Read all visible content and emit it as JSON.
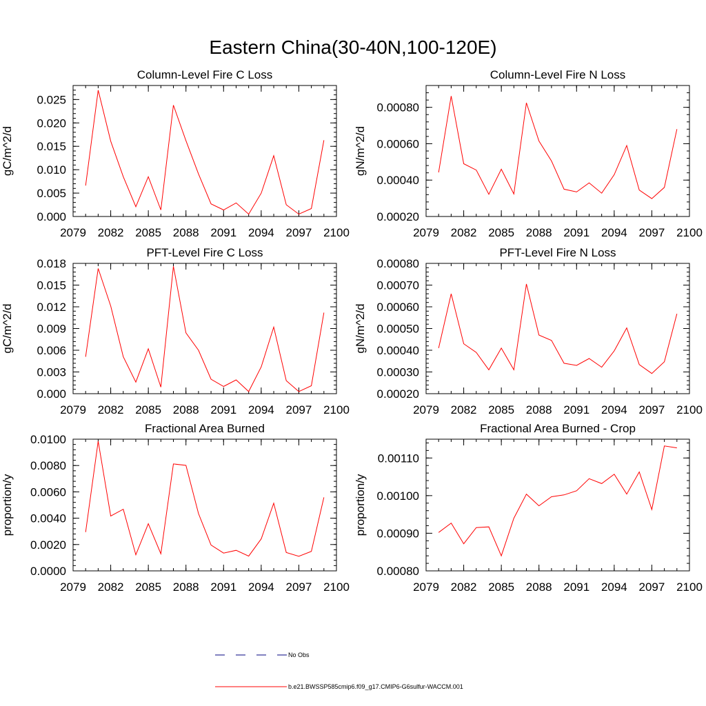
{
  "figure": {
    "title": "Eastern China(30-40N,100-120E)"
  },
  "legend": {
    "items": [
      {
        "label": "No Obs",
        "color": "#000080",
        "dash": true
      },
      {
        "label": "b.e21.BWSSP585cmip6.f09_g17.CMIP6-G6sulfur-WACCM.001",
        "color": "#ff0000",
        "dash": false
      }
    ]
  },
  "chart_data": [
    {
      "type": "line",
      "title": "Column-Level Fire C Loss",
      "ylabel": "gC/m^2/d",
      "xlim": [
        2079,
        2100
      ],
      "ylim": [
        0,
        0.028
      ],
      "xticks": [
        2079,
        2082,
        2085,
        2088,
        2091,
        2094,
        2097,
        2100
      ],
      "yticks": [
        0.0,
        0.005,
        0.01,
        0.015,
        0.02,
        0.025
      ],
      "ytick_labels": [
        "0.000",
        "0.005",
        "0.010",
        "0.015",
        "0.020",
        "0.025"
      ],
      "series": [
        {
          "name": "b.e21.BWSSP585cmip6.f09_g17.CMIP6-G6sulfur-WACCM.001",
          "color": "#ff0000",
          "x": [
            2080,
            2081,
            2082,
            2083,
            2084,
            2085,
            2086,
            2087,
            2088,
            2089,
            2090,
            2091,
            2092,
            2093,
            2094,
            2095,
            2096,
            2097,
            2098,
            2099
          ],
          "y": [
            0.0066,
            0.027,
            0.0161,
            0.0085,
            0.0021,
            0.0085,
            0.0014,
            0.0238,
            0.0162,
            0.0091,
            0.0027,
            0.0014,
            0.0029,
            0.0005,
            0.005,
            0.013,
            0.0025,
            0.0005,
            0.0017,
            0.0163
          ]
        }
      ]
    },
    {
      "type": "line",
      "title": "Column-Level Fire N Loss",
      "ylabel": "gN/m^2/d",
      "xlim": [
        2079,
        2100
      ],
      "ylim": [
        0.0002,
        0.00092
      ],
      "xticks": [
        2079,
        2082,
        2085,
        2088,
        2091,
        2094,
        2097,
        2100
      ],
      "yticks": [
        0.0002,
        0.0004,
        0.0006,
        0.0008
      ],
      "ytick_labels": [
        "0.00020",
        "0.00040",
        "0.00060",
        "0.00080"
      ],
      "series": [
        {
          "name": "b.e21.BWSSP585cmip6.f09_g17.CMIP6-G6sulfur-WACCM.001",
          "color": "#ff0000",
          "x": [
            2080,
            2081,
            2082,
            2083,
            2084,
            2085,
            2086,
            2087,
            2088,
            2089,
            2090,
            2091,
            2092,
            2093,
            2094,
            2095,
            2096,
            2097,
            2098,
            2099
          ],
          "y": [
            0.000442,
            0.000862,
            0.00049,
            0.000455,
            0.000322,
            0.00046,
            0.000324,
            0.000825,
            0.000615,
            0.000505,
            0.00035,
            0.000335,
            0.000385,
            0.000328,
            0.00043,
            0.00059,
            0.000345,
            0.000298,
            0.00036,
            0.00068
          ]
        }
      ]
    },
    {
      "type": "line",
      "title": "PFT-Level Fire C Loss",
      "ylabel": "gC/m^2/d",
      "xlim": [
        2079,
        2100
      ],
      "ylim": [
        0,
        0.018
      ],
      "xticks": [
        2079,
        2082,
        2085,
        2088,
        2091,
        2094,
        2097,
        2100
      ],
      "yticks": [
        0.0,
        0.003,
        0.006,
        0.009,
        0.012,
        0.015,
        0.018
      ],
      "ytick_labels": [
        "0.000",
        "0.003",
        "0.006",
        "0.009",
        "0.012",
        "0.015",
        "0.018"
      ],
      "series": [
        {
          "name": "b.e21.BWSSP585cmip6.f09_g17.CMIP6-G6sulfur-WACCM.001",
          "color": "#ff0000",
          "x": [
            2080,
            2081,
            2082,
            2083,
            2084,
            2085,
            2086,
            2087,
            2088,
            2089,
            2090,
            2091,
            2092,
            2093,
            2094,
            2095,
            2096,
            2097,
            2098,
            2099
          ],
          "y": [
            0.0051,
            0.0173,
            0.0121,
            0.0051,
            0.0016,
            0.0062,
            0.0009,
            0.0176,
            0.0084,
            0.006,
            0.002,
            0.001,
            0.0019,
            0.0003,
            0.0037,
            0.0092,
            0.0018,
            0.0003,
            0.0011,
            0.0112
          ]
        }
      ]
    },
    {
      "type": "line",
      "title": "PFT-Level Fire N Loss",
      "ylabel": "gN/m^2/d",
      "xlim": [
        2079,
        2100
      ],
      "ylim": [
        0.0002,
        0.0008
      ],
      "xticks": [
        2079,
        2082,
        2085,
        2088,
        2091,
        2094,
        2097,
        2100
      ],
      "yticks": [
        0.0002,
        0.0003,
        0.0004,
        0.0005,
        0.0006,
        0.0007,
        0.0008
      ],
      "ytick_labels": [
        "0.00020",
        "0.00030",
        "0.00040",
        "0.00050",
        "0.00060",
        "0.00070",
        "0.00080"
      ],
      "series": [
        {
          "name": "b.e21.BWSSP585cmip6.f09_g17.CMIP6-G6sulfur-WACCM.001",
          "color": "#ff0000",
          "x": [
            2080,
            2081,
            2082,
            2083,
            2084,
            2085,
            2086,
            2087,
            2088,
            2089,
            2090,
            2091,
            2092,
            2093,
            2094,
            2095,
            2096,
            2097,
            2098,
            2099
          ],
          "y": [
            0.00041,
            0.00066,
            0.00043,
            0.00039,
            0.00031,
            0.00041,
            0.00031,
            0.000705,
            0.00047,
            0.000445,
            0.00034,
            0.00033,
            0.000362,
            0.000322,
            0.000397,
            0.000503,
            0.000334,
            0.000293,
            0.000347,
            0.000568
          ]
        }
      ]
    },
    {
      "type": "line",
      "title": "Fractional Area Burned",
      "ylabel": "proportion/y",
      "xlim": [
        2079,
        2100
      ],
      "ylim": [
        0,
        0.01
      ],
      "xticks": [
        2079,
        2082,
        2085,
        2088,
        2091,
        2094,
        2097,
        2100
      ],
      "yticks": [
        0.0,
        0.002,
        0.004,
        0.006,
        0.008,
        0.01
      ],
      "ytick_labels": [
        "0.0000",
        "0.0020",
        "0.0040",
        "0.0060",
        "0.0080",
        "0.0100"
      ],
      "series": [
        {
          "name": "b.e21.BWSSP585cmip6.f09_g17.CMIP6-G6sulfur-WACCM.001",
          "color": "#ff0000",
          "x": [
            2080,
            2081,
            2082,
            2083,
            2084,
            2085,
            2086,
            2087,
            2088,
            2089,
            2090,
            2091,
            2092,
            2093,
            2094,
            2095,
            2096,
            2097,
            2098,
            2099
          ],
          "y": [
            0.00294,
            0.00985,
            0.00416,
            0.00468,
            0.00122,
            0.00358,
            0.0013,
            0.00812,
            0.00801,
            0.00435,
            0.00196,
            0.00135,
            0.00156,
            0.00112,
            0.00243,
            0.00514,
            0.0014,
            0.00111,
            0.00148,
            0.00558
          ]
        }
      ]
    },
    {
      "type": "line",
      "title": "Fractional Area Burned - Crop",
      "ylabel": "proportion/y",
      "xlim": [
        2079,
        2100
      ],
      "ylim": [
        0.0008,
        0.00115
      ],
      "xticks": [
        2079,
        2082,
        2085,
        2088,
        2091,
        2094,
        2097,
        2100
      ],
      "yticks": [
        0.0008,
        0.0009,
        0.001,
        0.0011
      ],
      "ytick_labels": [
        "0.00080",
        "0.00090",
        "0.00100",
        "0.00110"
      ],
      "series": [
        {
          "name": "b.e21.BWSSP585cmip6.f09_g17.CMIP6-G6sulfur-WACCM.001",
          "color": "#ff0000",
          "x": [
            2080,
            2081,
            2082,
            2083,
            2084,
            2085,
            2086,
            2087,
            2088,
            2089,
            2090,
            2091,
            2092,
            2093,
            2094,
            2095,
            2096,
            2097,
            2098,
            2099
          ],
          "y": [
            0.000902,
            0.000927,
            0.000872,
            0.000915,
            0.000917,
            0.00084,
            0.00094,
            0.001004,
            0.000973,
            0.000997,
            0.001002,
            0.001013,
            0.001045,
            0.001032,
            0.001057,
            0.001004,
            0.001063,
            0.000963,
            0.001132,
            0.001127
          ]
        }
      ]
    }
  ]
}
